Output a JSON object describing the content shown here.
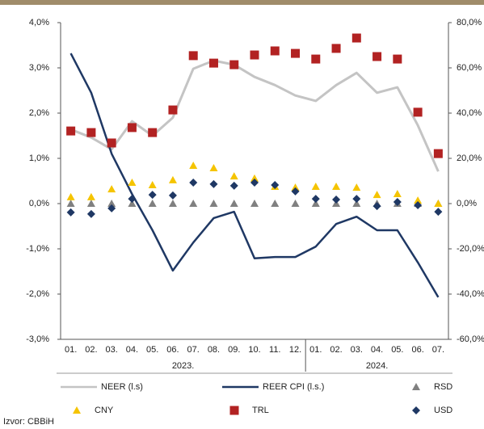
{
  "chart_data": {
    "type": "combo",
    "categories": [
      "01.",
      "02.",
      "03.",
      "04.",
      "05.",
      "06.",
      "07.",
      "08.",
      "09.",
      "10.",
      "11.",
      "12.",
      "01.",
      "02.",
      "03.",
      "04.",
      "05.",
      "06.",
      "07."
    ],
    "x_groups": [
      "2023.",
      "2024."
    ],
    "ylim": [
      -3,
      4
    ],
    "yticks": [
      {
        "value": -3,
        "label": "-3,0%"
      },
      {
        "value": -2,
        "label": "-2,0%"
      },
      {
        "value": -1,
        "label": "-1,0%"
      },
      {
        "value": 0,
        "label": "0,0%"
      },
      {
        "value": 1,
        "label": "1,0%"
      },
      {
        "value": 2,
        "label": "2,0%"
      },
      {
        "value": 3,
        "label": "3,0%"
      },
      {
        "value": 4,
        "label": "4,0%"
      }
    ],
    "y2lim": [
      -60,
      80
    ],
    "y2ticks": [
      {
        "value": -60,
        "label": "-60,0%"
      },
      {
        "value": -40,
        "label": "-40,0%"
      },
      {
        "value": -20,
        "label": "-20,0%"
      },
      {
        "value": 0,
        "label": "0,0%"
      },
      {
        "value": 20,
        "label": "20,0%"
      },
      {
        "value": 40,
        "label": "40,0%"
      },
      {
        "value": 60,
        "label": "60,0%"
      },
      {
        "value": 80,
        "label": "80,0%"
      }
    ],
    "grid": false,
    "series": [
      {
        "name": "NEER (l.s)",
        "color": "#c4c4c4",
        "values": [
          1.64,
          1.46,
          1.2,
          1.82,
          1.5,
          1.9,
          2.98,
          3.16,
          3.07,
          2.8,
          2.62,
          2.39,
          2.27,
          2.62,
          2.89,
          2.45,
          2.57,
          1.73,
          0.71
        ]
      },
      {
        "name": "REER CPI (l.s.)",
        "color": "#1f3864",
        "values": [
          3.32,
          2.45,
          1.1,
          0.21,
          -0.59,
          -1.48,
          -0.86,
          -0.32,
          -0.18,
          -1.21,
          -1.18,
          -1.18,
          -0.95,
          -0.45,
          -0.29,
          -0.59,
          -0.59,
          -1.3,
          -2.07
        ]
      },
      {
        "name": "RSD",
        "color": "#808080",
        "marker": "triangle",
        "axis": "y2",
        "values": [
          0,
          0,
          0,
          0,
          0,
          0,
          0,
          0,
          0,
          0,
          0,
          0,
          0,
          0,
          0,
          0,
          0,
          0,
          0
        ]
      },
      {
        "name": "CNY",
        "color": "#f5c400",
        "marker": "triangle",
        "axis": "y2",
        "values": [
          2.9,
          2.9,
          6.4,
          9.3,
          8.2,
          10.4,
          16.8,
          15.7,
          12.1,
          11.1,
          7.5,
          7.1,
          7.5,
          7.5,
          7.1,
          3.9,
          4.3,
          1.4,
          0
        ]
      },
      {
        "name": "TRL",
        "color": "#b22222",
        "marker": "square",
        "axis": "y2",
        "values": [
          32.1,
          31.4,
          26.8,
          33.6,
          31.4,
          41.4,
          65.4,
          62.1,
          61.4,
          65.7,
          67.5,
          66.4,
          63.9,
          68.6,
          73.2,
          65,
          63.9,
          40.4,
          22.1
        ]
      },
      {
        "name": "USD",
        "color": "#1f3864",
        "marker": "diamond",
        "axis": "y2",
        "values": [
          -3.9,
          -4.6,
          -2.1,
          2.1,
          3.9,
          3.6,
          9.3,
          8.6,
          7.9,
          9.3,
          8.2,
          5.4,
          2.1,
          1.8,
          2.1,
          -1.1,
          0.7,
          -0.7,
          -3.6
        ]
      }
    ],
    "source": "Izvor: CBBiH"
  }
}
